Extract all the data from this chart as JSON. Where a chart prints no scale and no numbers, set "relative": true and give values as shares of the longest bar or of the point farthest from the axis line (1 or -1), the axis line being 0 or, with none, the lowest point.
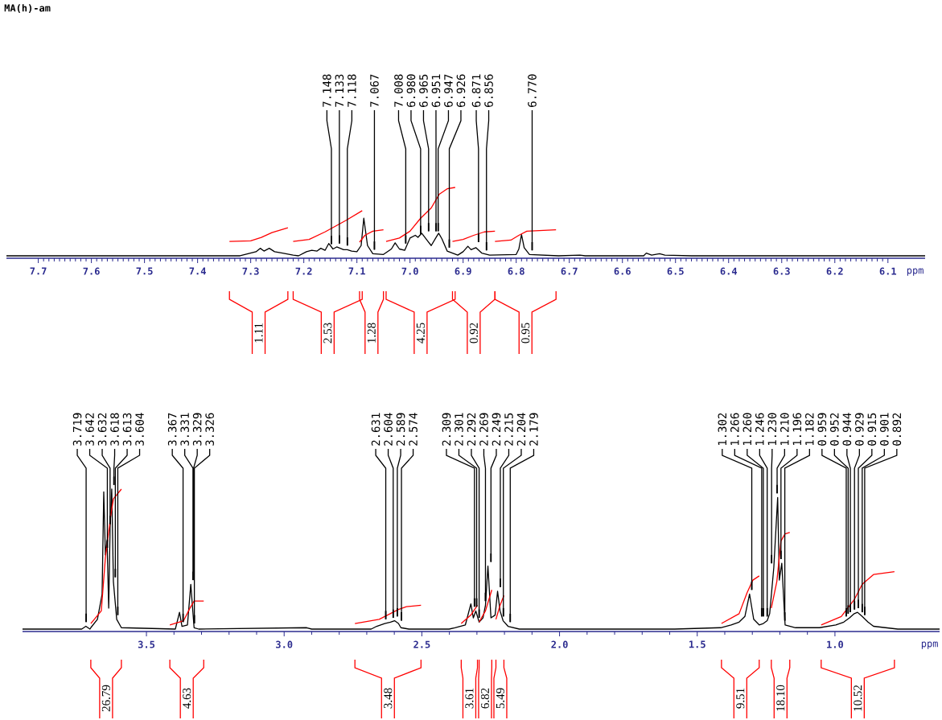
{
  "chart_data": [
    {
      "type": "line",
      "title": "MA(h)-am",
      "xlabel": "ppm",
      "relative": true,
      "xlim": [
        7.76,
        6.03
      ],
      "xticks": [
        7.7,
        7.6,
        7.5,
        7.4,
        7.3,
        7.2,
        7.1,
        {
          "value": 7.0,
          "label": "7.0"
        },
        6.9,
        6.8,
        6.7,
        6.6,
        6.5,
        6.4,
        6.3,
        6.2,
        6.1
      ],
      "series": [
        {
          "color": "#000000",
          "x": [
            7.76,
            7.32,
            7.305,
            7.29,
            7.282,
            7.275,
            7.265,
            7.255,
            7.24,
            7.22,
            7.21,
            7.195,
            7.185,
            7.175,
            7.168,
            7.16,
            7.153,
            7.145,
            7.138,
            7.125,
            7.118,
            7.11,
            7.1,
            7.092,
            7.087,
            7.08,
            7.07,
            7.05,
            7.035,
            7.028,
            7.02,
            7.01,
            7.0,
            6.99,
            6.985,
            6.978,
            6.971,
            6.967,
            6.96,
            6.95,
            6.946,
            6.94,
            6.93,
            6.91,
            6.9,
            6.891,
            6.885,
            6.876,
            6.865,
            6.85,
            6.8,
            6.795,
            6.79,
            6.785,
            6.775,
            6.72,
            6.68,
            6.67,
            6.56,
            6.555,
            6.545,
            6.53,
            6.52,
            6.47,
            6.03
          ],
          "values": [
            0,
            0,
            0.03,
            0.06,
            0.11,
            0.07,
            0.11,
            0.06,
            0.04,
            0.01,
            0,
            0.06,
            0.08,
            0.07,
            0.11,
            0.08,
            0.18,
            0.1,
            0.13,
            0.09,
            0.09,
            0.07,
            0.06,
            0.15,
            0.55,
            0.15,
            0.03,
            0.02,
            0.1,
            0.19,
            0.1,
            0.08,
            0.26,
            0.3,
            0.27,
            0.33,
            0.26,
            0.22,
            0.15,
            0.28,
            0.33,
            0.25,
            0.07,
            0.01,
            0.06,
            0.14,
            0.09,
            0.12,
            0.04,
            0.01,
            0.02,
            0.1,
            0.31,
            0.12,
            0.02,
            0,
            0.01,
            0,
            0,
            0.04,
            0.01,
            0.03,
            0.01,
            0,
            0
          ]
        },
        {
          "color": "#ff0000",
          "x": [
            7.34,
            7.3,
            7.28,
            7.26,
            7.23
          ],
          "values": [
            0.21,
            0.22,
            0.27,
            0.34,
            0.41
          ]
        },
        {
          "color": "#ff0000",
          "x": [
            7.22,
            7.19,
            7.16,
            7.12,
            7.09
          ],
          "values": [
            0.21,
            0.24,
            0.35,
            0.52,
            0.66
          ]
        },
        {
          "color": "#ff0000",
          "x": [
            7.095,
            7.085,
            7.07,
            7.05
          ],
          "values": [
            0.2,
            0.3,
            0.36,
            0.38
          ]
        },
        {
          "color": "#ff0000",
          "x": [
            7.045,
            7.02,
            7.0,
            6.98,
            6.96,
            6.945,
            6.93,
            6.915
          ],
          "values": [
            0.21,
            0.26,
            0.36,
            0.55,
            0.7,
            0.9,
            0.98,
            1.0
          ]
        },
        {
          "color": "#ff0000",
          "x": [
            6.92,
            6.9,
            6.88,
            6.86,
            6.84
          ],
          "values": [
            0.21,
            0.24,
            0.3,
            0.35,
            0.36
          ]
        },
        {
          "color": "#ff0000",
          "x": [
            6.84,
            6.81,
            6.795,
            6.78,
            6.725
          ],
          "values": [
            0.21,
            0.23,
            0.3,
            0.36,
            0.38
          ]
        }
      ],
      "annotations": [
        {
          "text": "7.148",
          "x": 7.148,
          "y": 0.11
        },
        {
          "text": "7.133",
          "x": 7.133,
          "y": 0.12
        },
        {
          "text": "7.118",
          "x": 7.118,
          "y": 0.09
        },
        {
          "text": "7.067",
          "x": 7.067,
          "y": 0.03
        },
        {
          "text": "7.008",
          "x": 7.008,
          "y": 0.12
        },
        {
          "text": "6.980",
          "x": 6.98,
          "y": 0.26
        },
        {
          "text": "6.965",
          "x": 6.965,
          "y": 0.3
        },
        {
          "text": "6.951",
          "x": 6.951,
          "y": 0.3
        },
        {
          "text": "6.947",
          "x": 6.947,
          "y": 0.3
        },
        {
          "text": "6.926",
          "x": 6.926,
          "y": 0.06
        },
        {
          "text": "6.871",
          "x": 6.871,
          "y": 0.14
        },
        {
          "text": "6.856",
          "x": 6.856,
          "y": 0.02
        },
        {
          "text": "6.770",
          "x": 6.77,
          "y": 0.02
        },
        "1.11",
        "2.53",
        "1.28",
        "4.25",
        "0.92",
        "0.95"
      ]
    },
    {
      "type": "line",
      "xlabel": "ppm",
      "relative": true,
      "xlim": [
        3.95,
        0.62
      ],
      "xticks": [
        3.5,
        {
          "value": 3.0,
          "label": "3.0"
        },
        2.5,
        {
          "value": 2.0,
          "label": "2.0"
        },
        1.5,
        {
          "value": 1.0,
          "label": "1.0"
        }
      ],
      "series": [
        {
          "color": "#000000",
          "x": [
            3.95,
            3.735,
            3.72,
            3.705,
            3.702,
            3.678,
            3.661,
            3.655,
            3.649,
            3.643,
            3.637,
            3.632,
            3.626,
            3.62,
            3.608,
            3.591,
            3.395,
            3.38,
            3.371,
            3.351,
            3.339,
            3.327,
            3.31,
            2.918,
            2.9,
            2.684,
            2.664,
            2.635,
            2.614,
            2.599,
            2.585,
            2.576,
            2.547,
            2.401,
            2.38,
            2.342,
            2.322,
            2.313,
            2.304,
            2.292,
            2.278,
            2.269,
            2.26,
            2.249,
            2.234,
            2.225,
            2.216,
            2.205,
            2.187,
            2.146,
            1.582,
            1.415,
            1.377,
            1.348,
            1.327,
            1.31,
            1.295,
            1.275,
            1.26,
            1.246,
            1.237,
            1.222,
            1.208,
            1.202,
            1.193,
            1.181,
            1.143,
            1.056,
            0.997,
            0.968,
            0.947,
            0.93,
            0.918,
            0.901,
            0.88,
            0.86,
            0.772,
            0.62
          ],
          "values": [
            0,
            0,
            0.02,
            0,
            0.01,
            0.07,
            0.25,
            0.98,
            0.53,
            0.63,
            0.15,
            0.72,
            1.0,
            0.34,
            0.07,
            0.01,
            0,
            0.12,
            0.02,
            0.03,
            0.32,
            0.01,
            0,
            0.01,
            0,
            0,
            0.02,
            0.04,
            0.05,
            0.06,
            0.04,
            0.01,
            0,
            0,
            0.01,
            0.03,
            0.18,
            0.08,
            0.13,
            0.05,
            0.08,
            0.17,
            0.45,
            0.08,
            0.1,
            0.27,
            0.13,
            0.06,
            0.02,
            0,
            0,
            0.01,
            0.03,
            0.05,
            0.09,
            0.25,
            0.07,
            0.03,
            0.04,
            0.06,
            0.11,
            0.44,
            0.94,
            0.35,
            0.47,
            0.03,
            0.01,
            0.01,
            0.03,
            0.05,
            0.08,
            0.11,
            0.12,
            0.09,
            0.05,
            0.02,
            0,
            0
          ]
        },
        {
          "color": "#ff0000",
          "x": [
            3.702,
            3.664,
            3.649,
            3.629,
            3.62,
            3.591
          ],
          "values": [
            0.04,
            0.13,
            0.51,
            0.82,
            0.93,
            1.0
          ]
        },
        {
          "color": "#ff0000",
          "x": [
            3.415,
            3.365,
            3.342,
            3.327,
            3.292
          ],
          "values": [
            0.03,
            0.06,
            0.15,
            0.2,
            0.2
          ]
        },
        {
          "color": "#ff0000",
          "x": [
            2.743,
            2.655,
            2.585,
            2.556,
            2.503
          ],
          "values": [
            0.04,
            0.07,
            0.14,
            0.16,
            0.17
          ]
        },
        {
          "color": "#ff0000",
          "x": [
            2.357,
            2.322,
            2.298
          ],
          "values": [
            0.04,
            0.1,
            0.17
          ]
        },
        {
          "color": "#ff0000",
          "x": [
            2.292,
            2.269,
            2.246
          ],
          "values": [
            0.05,
            0.13,
            0.28
          ]
        },
        {
          "color": "#ff0000",
          "x": [
            2.231,
            2.216,
            2.202
          ],
          "values": [
            0.07,
            0.17,
            0.24
          ]
        },
        {
          "color": "#ff0000",
          "x": [
            1.412,
            1.348,
            1.319,
            1.298,
            1.275
          ],
          "values": [
            0.04,
            0.11,
            0.26,
            0.35,
            0.38
          ]
        },
        {
          "color": "#ff0000",
          "x": [
            1.231,
            1.211,
            1.196,
            1.181,
            1.164
          ],
          "values": [
            0.15,
            0.34,
            0.63,
            0.68,
            0.69
          ]
        },
        {
          "color": "#ff0000",
          "x": [
            1.05,
            0.977,
            0.93,
            0.901,
            0.86,
            0.784
          ],
          "values": [
            0.03,
            0.09,
            0.21,
            0.32,
            0.39,
            0.41
          ]
        }
      ],
      "annotations": [
        {
          "text": "3.719",
          "x": 3.719,
          "y": 0.02
        },
        {
          "text": "3.642",
          "x": 3.642,
          "y": 0.55
        },
        {
          "text": "3.632",
          "x": 3.632,
          "y": 0.72
        },
        {
          "text": "3.618",
          "x": 3.618,
          "y": 1.0
        },
        {
          "text": "3.613",
          "x": 3.613,
          "y": 0.34
        },
        {
          "text": "3.604",
          "x": 3.604,
          "y": 0.07
        },
        {
          "text": "3.367",
          "x": 3.367,
          "y": 0.02
        },
        {
          "text": "3.331",
          "x": 3.331,
          "y": 0.32
        },
        {
          "text": "3.329",
          "x": 3.329,
          "y": 0.32
        },
        {
          "text": "3.326",
          "x": 3.326,
          "y": 0.01
        },
        {
          "text": "2.631",
          "x": 2.631,
          "y": 0.04
        },
        {
          "text": "2.604",
          "x": 2.604,
          "y": 0.05
        },
        {
          "text": "2.589",
          "x": 2.589,
          "y": 0.06
        },
        {
          "text": "2.574",
          "x": 2.574,
          "y": 0.03
        },
        {
          "text": "2.309",
          "x": 2.309,
          "y": 0.13
        },
        {
          "text": "2.301",
          "x": 2.301,
          "y": 0.13
        },
        {
          "text": "2.292",
          "x": 2.292,
          "y": 0.05
        },
        {
          "text": "2.269",
          "x": 2.269,
          "y": 0.17
        },
        {
          "text": "2.249",
          "x": 2.249,
          "y": 0.45
        },
        {
          "text": "2.215",
          "x": 2.215,
          "y": 0.27
        },
        {
          "text": "2.204",
          "x": 2.204,
          "y": 0.06
        },
        {
          "text": "2.179",
          "x": 2.179,
          "y": 0.02
        },
        {
          "text": "1.302",
          "x": 1.302,
          "y": 0.25
        },
        {
          "text": "1.266",
          "x": 1.266,
          "y": 0.06
        },
        {
          "text": "1.260",
          "x": 1.26,
          "y": 0.06
        },
        {
          "text": "1.246",
          "x": 1.246,
          "y": 0.06
        },
        {
          "text": "1.230",
          "x": 1.23,
          "y": 0.44
        },
        {
          "text": "1.210",
          "x": 1.21,
          "y": 0.94
        },
        {
          "text": "1.196",
          "x": 1.196,
          "y": 0.47
        },
        {
          "text": "1.182",
          "x": 1.182,
          "y": 0.03
        },
        {
          "text": "0.959",
          "x": 0.959,
          "y": 0.06
        },
        {
          "text": "0.952",
          "x": 0.952,
          "y": 0.08
        },
        {
          "text": "0.944",
          "x": 0.944,
          "y": 0.09
        },
        {
          "text": "0.929",
          "x": 0.929,
          "y": 0.11
        },
        {
          "text": "0.915",
          "x": 0.915,
          "y": 0.12
        },
        {
          "text": "0.901",
          "x": 0.901,
          "y": 0.09
        },
        {
          "text": "0.892",
          "x": 0.892,
          "y": 0.07
        },
        "26.79",
        "4.63",
        "3.48",
        "3.61",
        "6.82",
        "5.49",
        "9.51",
        "18.10",
        "10.52"
      ]
    }
  ]
}
